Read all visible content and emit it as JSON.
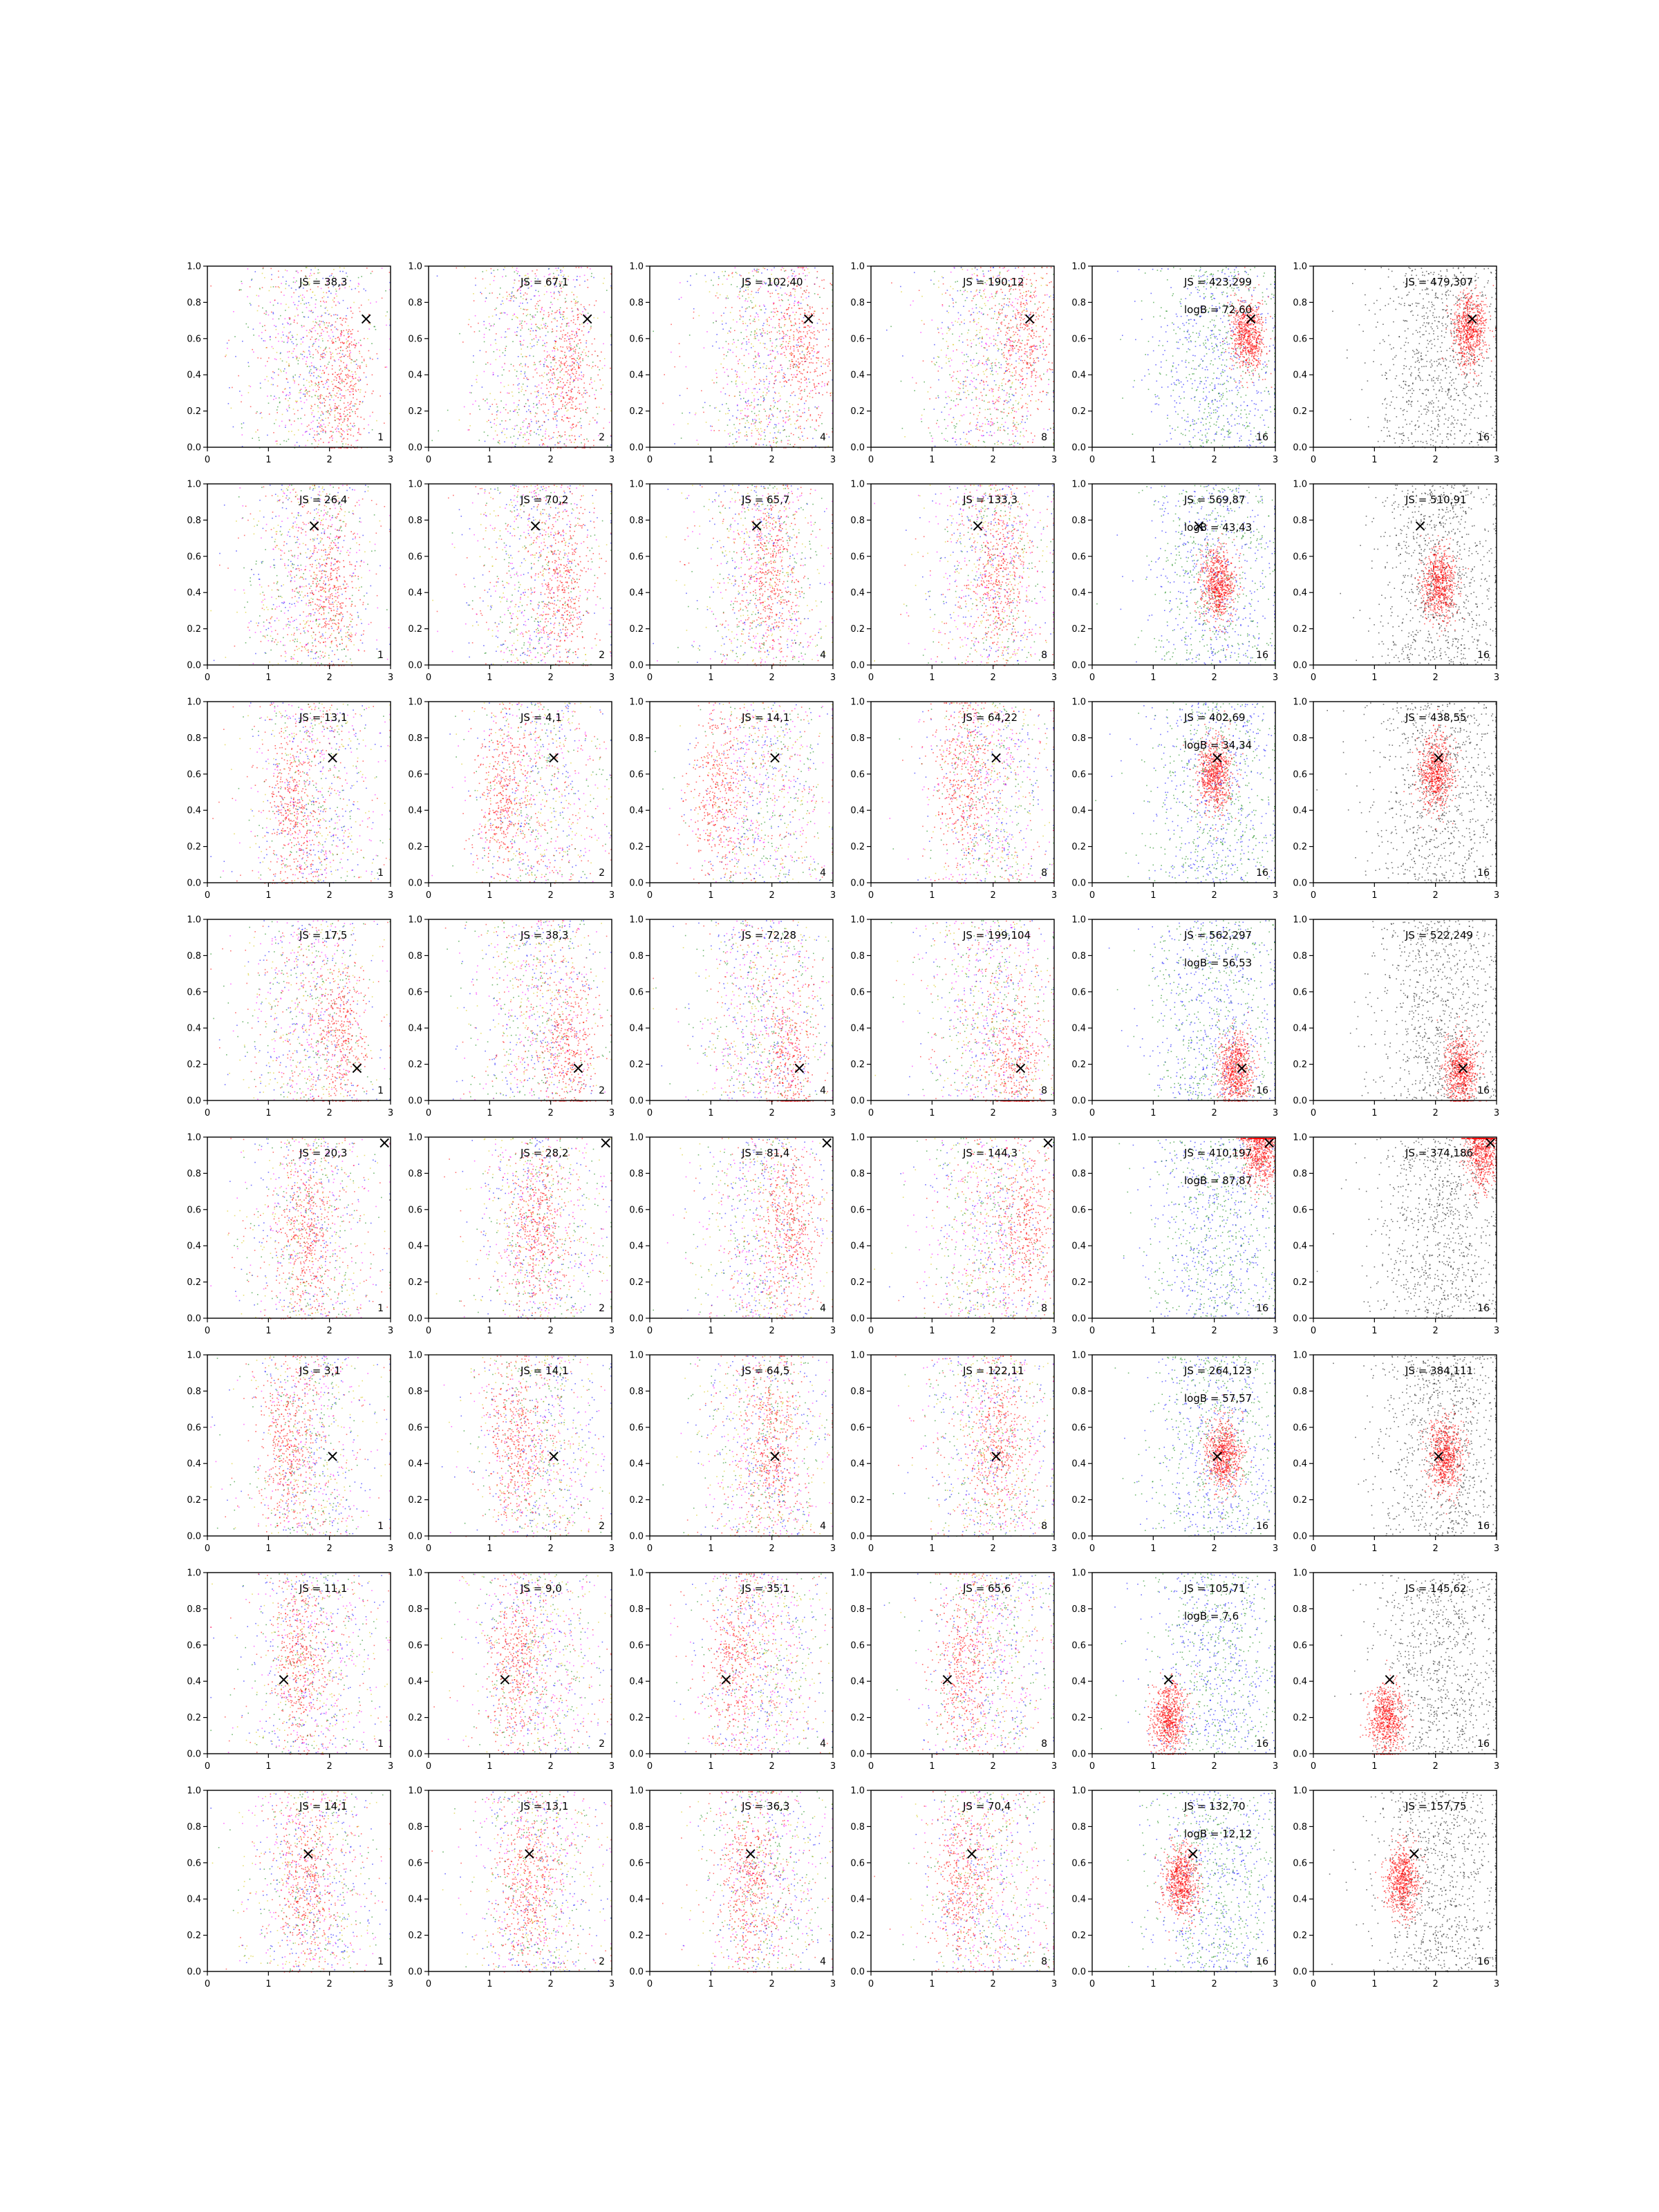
{
  "figure": {
    "colors": {
      "red": "#ff0000",
      "blue": "#0000ff",
      "green": "#008000",
      "black": "#000000",
      "magenta": "#ff00ff",
      "yellow": "#d4c400"
    }
  },
  "chart_data": {
    "type": "scatter",
    "rows": 8,
    "cols": 6,
    "xlim": [
      0,
      3
    ],
    "ylim": [
      0,
      1
    ],
    "xticks": [
      "0",
      "1",
      "2",
      "3"
    ],
    "yticks": [
      "0.0",
      "0.2",
      "0.4",
      "0.6",
      "0.8",
      "1.0"
    ],
    "column_counts": [
      "1",
      "2",
      "4",
      "8",
      "16",
      "16"
    ],
    "marker_label": "×",
    "panels": [
      {
        "row": 0,
        "marker": [
          2.6,
          0.71
        ],
        "js": [
          "JS = 38,3",
          "JS = 67,1",
          "JS = 102,40",
          "JS = 190,12",
          "JS = 423,299",
          "JS = 479,307"
        ],
        "logB": "logB = 72,60",
        "centers": [
          [
            2.2,
            0.35
          ],
          [
            2.3,
            0.4
          ],
          [
            2.5,
            0.55
          ],
          [
            2.5,
            0.6
          ],
          [
            2.55,
            0.62
          ],
          [
            2.55,
            0.65
          ]
        ]
      },
      {
        "row": 1,
        "marker": [
          1.75,
          0.77
        ],
        "js": [
          "JS = 26,4",
          "JS = 70,2",
          "JS = 65,7",
          "JS = 133,3",
          "JS = 569,87",
          "JS = 510,91"
        ],
        "logB": "logB = 43,43",
        "centers": [
          [
            2.0,
            0.4
          ],
          [
            2.2,
            0.45
          ],
          [
            2.0,
            0.5
          ],
          [
            2.1,
            0.5
          ],
          [
            2.05,
            0.45
          ],
          [
            2.05,
            0.45
          ]
        ]
      },
      {
        "row": 2,
        "marker": [
          2.05,
          0.69
        ],
        "js": [
          "JS = 13,1",
          "JS = 4,1",
          "JS = 14,1",
          "JS = 64,22",
          "JS = 402,69",
          "JS = 438,55"
        ],
        "logB": "logB = 34,34",
        "centers": [
          [
            1.4,
            0.4
          ],
          [
            1.2,
            0.45
          ],
          [
            1.1,
            0.5
          ],
          [
            1.5,
            0.6
          ],
          [
            2.0,
            0.6
          ],
          [
            2.0,
            0.6
          ]
        ]
      },
      {
        "row": 3,
        "marker": [
          2.45,
          0.18
        ],
        "js": [
          "JS = 17,5",
          "JS = 38,3",
          "JS = 72,28",
          "JS = 199,104",
          "JS = 562,297",
          "JS = 522,249"
        ],
        "logB": "logB = 56,53",
        "centers": [
          [
            2.2,
            0.35
          ],
          [
            2.3,
            0.3
          ],
          [
            2.3,
            0.2
          ],
          [
            2.35,
            0.18
          ],
          [
            2.35,
            0.18
          ],
          [
            2.4,
            0.16
          ]
        ]
      },
      {
        "row": 4,
        "marker": [
          2.9,
          0.97
        ],
        "js": [
          "JS = 20,3",
          "JS = 28,2",
          "JS = 81,4",
          "JS = 144,3",
          "JS = 410,197",
          "JS = 374,186"
        ],
        "logB": "logB = 87,87",
        "centers": [
          [
            1.6,
            0.45
          ],
          [
            1.8,
            0.5
          ],
          [
            2.3,
            0.5
          ],
          [
            2.5,
            0.5
          ],
          [
            2.75,
            0.93
          ],
          [
            2.75,
            0.93
          ]
        ]
      },
      {
        "row": 5,
        "marker": [
          2.05,
          0.44
        ],
        "js": [
          "JS = 3,1",
          "JS = 14,1",
          "JS = 64,5",
          "JS = 122,11",
          "JS = 264,123",
          "JS = 384,111"
        ],
        "logB": "logB = 57,57",
        "centers": [
          [
            1.3,
            0.5
          ],
          [
            1.4,
            0.5
          ],
          [
            2.0,
            0.5
          ],
          [
            2.1,
            0.5
          ],
          [
            2.15,
            0.45
          ],
          [
            2.15,
            0.45
          ]
        ]
      },
      {
        "row": 6,
        "marker": [
          1.25,
          0.41
        ],
        "js": [
          "JS = 11,1",
          "JS = 9,0",
          "JS = 35,1",
          "JS = 65,6",
          "JS = 105,71",
          "JS = 145,62"
        ],
        "logB": "logB = 7,6",
        "centers": [
          [
            1.5,
            0.5
          ],
          [
            1.4,
            0.5
          ],
          [
            1.4,
            0.5
          ],
          [
            1.5,
            0.45
          ],
          [
            1.25,
            0.2
          ],
          [
            1.2,
            0.2
          ]
        ]
      },
      {
        "row": 7,
        "marker": [
          1.65,
          0.65
        ],
        "js": [
          "JS = 14,1",
          "JS = 13,1",
          "JS = 36,3",
          "JS = 70,4",
          "JS = 132,70",
          "JS = 157,75"
        ],
        "logB": "logB = 12,12",
        "centers": [
          [
            1.6,
            0.5
          ],
          [
            1.6,
            0.5
          ],
          [
            1.6,
            0.5
          ],
          [
            1.5,
            0.5
          ],
          [
            1.45,
            0.5
          ],
          [
            1.45,
            0.5
          ]
        ]
      }
    ]
  }
}
